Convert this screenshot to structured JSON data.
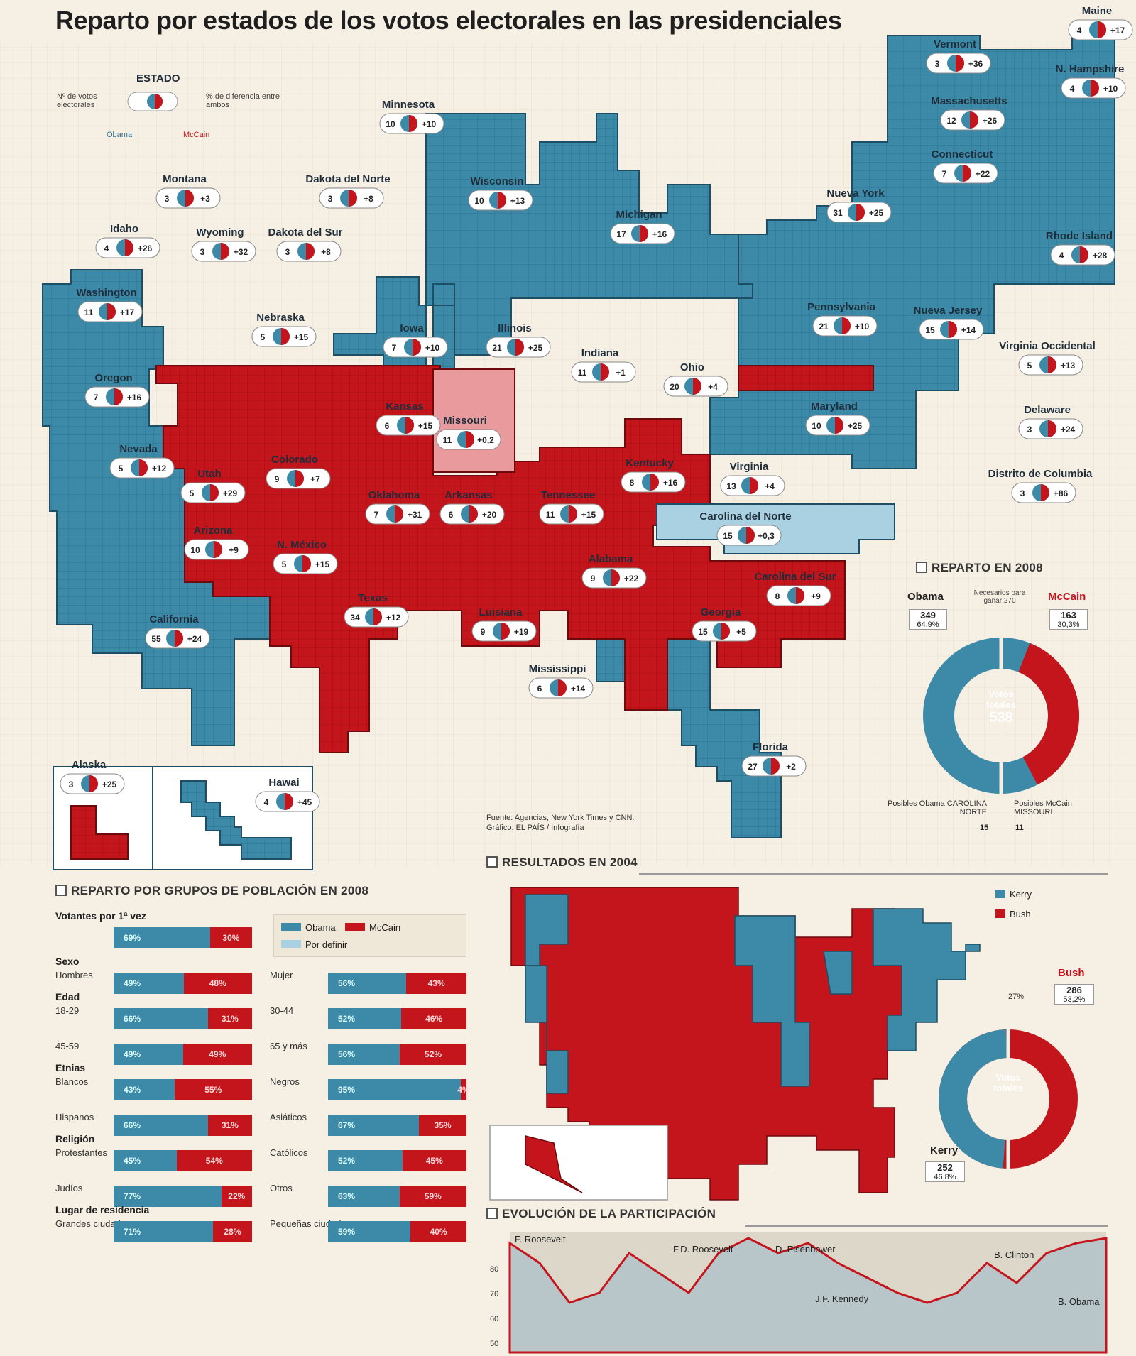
{
  "title": "Reparto por estados de los votos electorales en las presidenciales",
  "colors": {
    "obama": "#3c8aa8",
    "mccain": "#c4151c",
    "kerry": "#3c8aa8",
    "bush": "#c4151c",
    "undecided": "#a9d1e2"
  },
  "legend_key": {
    "estado": "ESTADO",
    "votes": "Nº de votos electorales",
    "diff": "% de diferencia entre ambos",
    "obama": "Obama",
    "mccain": "McCain"
  },
  "states": [
    {
      "name": "Minnesota",
      "ev": "10",
      "diff": "+10"
    },
    {
      "name": "Montana",
      "ev": "3",
      "diff": "+3"
    },
    {
      "name": "Dakota del Norte",
      "ev": "3",
      "diff": "+8"
    },
    {
      "name": "Idaho",
      "ev": "4",
      "diff": "+26"
    },
    {
      "name": "Wyoming",
      "ev": "3",
      "diff": "+32"
    },
    {
      "name": "Dakota del Sur",
      "ev": "3",
      "diff": "+8"
    },
    {
      "name": "Wisconsin",
      "ev": "10",
      "diff": "+13"
    },
    {
      "name": "Michigan",
      "ev": "17",
      "diff": "+16"
    },
    {
      "name": "Nueva York",
      "ev": "31",
      "diff": "+25"
    },
    {
      "name": "Vermont",
      "ev": "3",
      "diff": "+36"
    },
    {
      "name": "Maine",
      "ev": "4",
      "diff": "+17"
    },
    {
      "name": "N. Hampshire",
      "ev": "4",
      "diff": "+10"
    },
    {
      "name": "Massachusetts",
      "ev": "12",
      "diff": "+26"
    },
    {
      "name": "Connecticut",
      "ev": "7",
      "diff": "+22"
    },
    {
      "name": "Rhode Island",
      "ev": "4",
      "diff": "+28"
    },
    {
      "name": "Washington",
      "ev": "11",
      "diff": "+17"
    },
    {
      "name": "Nebraska",
      "ev": "5",
      "diff": "+15"
    },
    {
      "name": "Iowa",
      "ev": "7",
      "diff": "+10"
    },
    {
      "name": "Illinois",
      "ev": "21",
      "diff": "+25"
    },
    {
      "name": "Pennsylvania",
      "ev": "21",
      "diff": "+10"
    },
    {
      "name": "Nueva Jersey",
      "ev": "15",
      "diff": "+14"
    },
    {
      "name": "Oregon",
      "ev": "7",
      "diff": "+16"
    },
    {
      "name": "Indiana",
      "ev": "11",
      "diff": "+1"
    },
    {
      "name": "Ohio",
      "ev": "20",
      "diff": "+4"
    },
    {
      "name": "Virginia Occidental",
      "ev": "5",
      "diff": "+13"
    },
    {
      "name": "Kansas",
      "ev": "6",
      "diff": "+15"
    },
    {
      "name": "Missouri",
      "ev": "11",
      "diff": "+0,2"
    },
    {
      "name": "Maryland",
      "ev": "10",
      "diff": "+25"
    },
    {
      "name": "Delaware",
      "ev": "3",
      "diff": "+24"
    },
    {
      "name": "Nevada",
      "ev": "5",
      "diff": "+12"
    },
    {
      "name": "Utah",
      "ev": "5",
      "diff": "+29"
    },
    {
      "name": "Colorado",
      "ev": "9",
      "diff": "+7"
    },
    {
      "name": "Kentucky",
      "ev": "8",
      "diff": "+16"
    },
    {
      "name": "Virginia",
      "ev": "13",
      "diff": "+4"
    },
    {
      "name": "Distrito de Columbia",
      "ev": "3",
      "diff": "+86"
    },
    {
      "name": "Oklahoma",
      "ev": "7",
      "diff": "+31"
    },
    {
      "name": "Arkansas",
      "ev": "6",
      "diff": "+20"
    },
    {
      "name": "Tennessee",
      "ev": "11",
      "diff": "+15"
    },
    {
      "name": "Carolina del Norte",
      "ev": "15",
      "diff": "+0,3"
    },
    {
      "name": "Arizona",
      "ev": "10",
      "diff": "+9"
    },
    {
      "name": "N. México",
      "ev": "5",
      "diff": "+15"
    },
    {
      "name": "Alabama",
      "ev": "9",
      "diff": "+22"
    },
    {
      "name": "Carolina del Sur",
      "ev": "8",
      "diff": "+9"
    },
    {
      "name": "Texas",
      "ev": "34",
      "diff": "+12"
    },
    {
      "name": "Luisiana",
      "ev": "9",
      "diff": "+19"
    },
    {
      "name": "Georgia",
      "ev": "15",
      "diff": "+5"
    },
    {
      "name": "California",
      "ev": "55",
      "diff": "+24"
    },
    {
      "name": "Mississippi",
      "ev": "6",
      "diff": "+14"
    },
    {
      "name": "Florida",
      "ev": "27",
      "diff": "+2"
    },
    {
      "name": "Alaska",
      "ev": "3",
      "diff": "+25"
    },
    {
      "name": "Hawai",
      "ev": "4",
      "diff": "+45"
    }
  ],
  "reparto2008": {
    "heading": "REPARTO EN 2008",
    "obama_label": "Obama",
    "obama_votes": "349",
    "obama_pct": "64,9%",
    "mccain_label": "McCain",
    "mccain_votes": "163",
    "mccain_pct": "30,3%",
    "needed": "Necesarios para ganar 270",
    "center_label": "Votos totales",
    "center_value": "538",
    "obama_share": 0.649,
    "mccain_share": 0.303,
    "posibles_obama": "Posibles Obama CAROLINA NORTE",
    "posibles_obama_n": "15",
    "posibles_mccain": "Posibles McCain MISSOURI",
    "posibles_mccain_n": "11"
  },
  "source": {
    "line1": "Fuente: Agencias, New York Times y CNN.",
    "line2": "Gráfico: EL PAÍS / Infografía"
  },
  "resultados2004": {
    "heading": "RESULTADOS EN 2004",
    "kerry": "Kerry",
    "bush": "Bush",
    "bush_votes": "286",
    "bush_pct": "53,2%",
    "kerry_votes": "252",
    "kerry_pct": "46,8%",
    "center_label": "Votos totales",
    "other_pct": "27%",
    "kerry_share": 0.468,
    "bush_share": 0.532
  },
  "grupos": {
    "heading": "REPARTO POR GRUPOS DE POBLACIÓN EN 2008",
    "legend_obama": "Obama",
    "legend_mccain": "McCain",
    "legend_undecided": "Por definir",
    "rows": [
      {
        "section": "Votantes por 1ª vez",
        "label": "",
        "obama": 69,
        "mccain": 30,
        "o_txt": "69%",
        "m_txt": "30%"
      },
      {
        "section": "Sexo",
        "label": "Hombres",
        "obama": 49,
        "mccain": 48,
        "o_txt": "49%",
        "m_txt": "48%",
        "label2": "Mujer",
        "obama2": 56,
        "mccain2": 43,
        "o2_txt": "56%",
        "m2_txt": "43%"
      },
      {
        "section": "Edad",
        "label": "18-29",
        "obama": 66,
        "mccain": 31,
        "o_txt": "66%",
        "m_txt": "31%",
        "label2": "30-44",
        "obama2": 52,
        "mccain2": 46,
        "o2_txt": "52%",
        "m2_txt": "46%"
      },
      {
        "section": "",
        "label": "45-59",
        "obama": 49,
        "mccain": 49,
        "o_txt": "49%",
        "m_txt": "49%",
        "label2": "65 y más",
        "obama2": 56,
        "mccain2": 52,
        "o2_txt": "56%",
        "m2_txt": "52%"
      },
      {
        "section": "Etnias",
        "label": "Blancos",
        "obama": 43,
        "mccain": 55,
        "o_txt": "43%",
        "m_txt": "55%",
        "label2": "Negros",
        "obama2": 95,
        "mccain2": 4,
        "o2_txt": "95%",
        "m2_txt": "4%"
      },
      {
        "section": "",
        "label": "Hispanos",
        "obama": 66,
        "mccain": 31,
        "o_txt": "66%",
        "m_txt": "31%",
        "label2": "Asiáticos",
        "obama2": 67,
        "mccain2": 35,
        "o2_txt": "67%",
        "m2_txt": "35%"
      },
      {
        "section": "Religión",
        "label": "Protestantes",
        "obama": 45,
        "mccain": 54,
        "o_txt": "45%",
        "m_txt": "54%",
        "label2": "Católicos",
        "obama2": 52,
        "mccain2": 45,
        "o2_txt": "52%",
        "m2_txt": "45%"
      },
      {
        "section": "",
        "label": "Judíos",
        "obama": 77,
        "mccain": 22,
        "o_txt": "77%",
        "m_txt": "22%",
        "label2": "Otros",
        "obama2": 63,
        "mccain2": 59,
        "o2_txt": "63%",
        "m2_txt": "59%"
      },
      {
        "section": "Lugar de residencia",
        "label": "Grandes ciudades",
        "obama": 71,
        "mccain": 28,
        "o_txt": "71%",
        "m_txt": "28%",
        "label2": "Pequeñas ciudades",
        "obama2": 59,
        "mccain2": 40,
        "o2_txt": "59%",
        "m2_txt": "40%"
      }
    ]
  },
  "participacion": {
    "heading": "EVOLUCIÓN DE LA PARTICIPACIÓN",
    "annotations": [
      "F. Roosevelt",
      "F.D. Roosevelt",
      "D. Eisenhower",
      "J.F. Kennedy",
      "B. Clinton",
      "B. Obama"
    ],
    "y_ticks": [
      "80",
      "70",
      "60",
      "50"
    ]
  }
}
